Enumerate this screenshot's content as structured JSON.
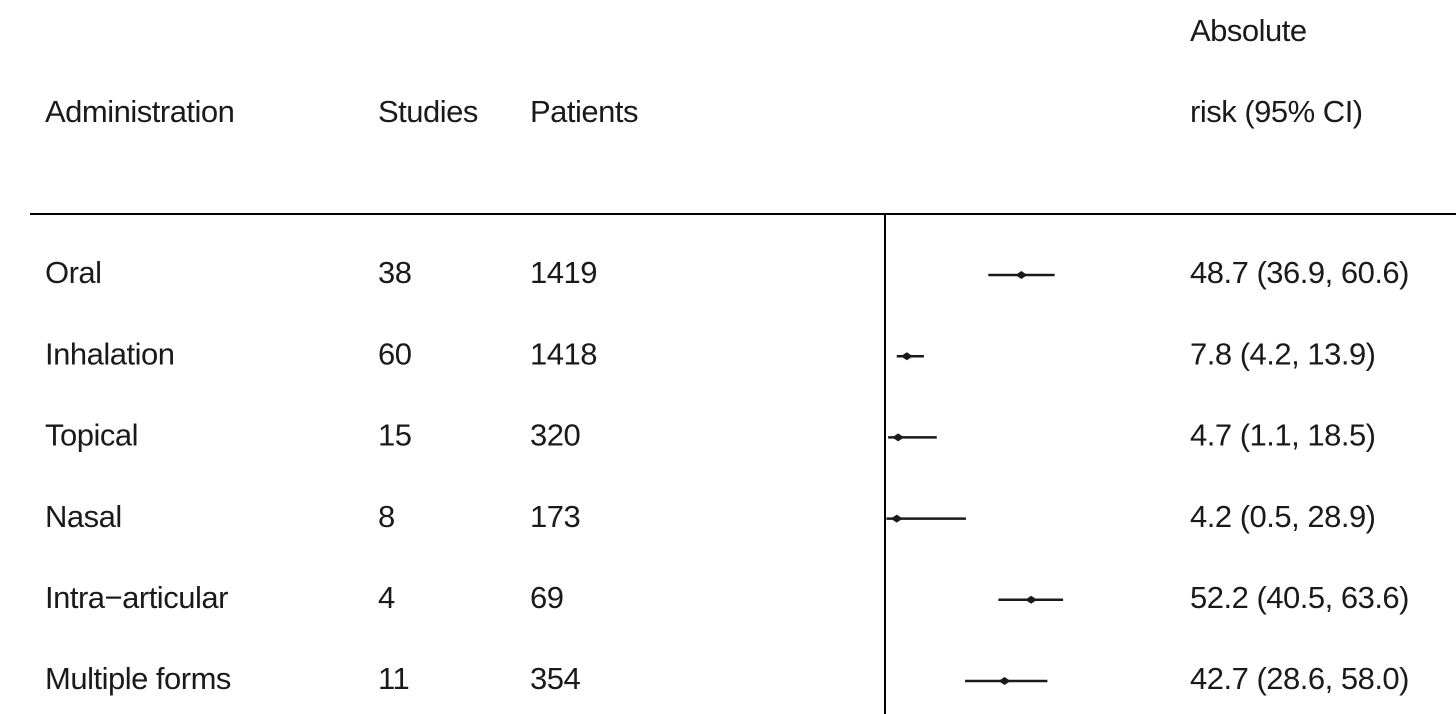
{
  "chart_data": {
    "type": "forest",
    "columns": [
      "Administration",
      "Studies",
      "Patients"
    ],
    "estimate_header": [
      "Absolute",
      "risk (95% CI)"
    ],
    "categories": [
      "Oral",
      "Inhalation",
      "Topical",
      "Nasal",
      "Intra−articular",
      "Multiple forms"
    ],
    "studies": [
      38,
      60,
      15,
      8,
      4,
      11
    ],
    "patients": [
      1419,
      1418,
      320,
      173,
      69,
      354
    ],
    "values": [
      48.7,
      7.8,
      4.7,
      4.2,
      52.2,
      42.7
    ],
    "lower": [
      36.9,
      4.2,
      1.1,
      0.5,
      40.5,
      28.6
    ],
    "upper": [
      60.6,
      13.9,
      18.5,
      28.9,
      63.6,
      58.0
    ],
    "value_labels": [
      "48.7 (36.9, 60.6)",
      "7.8 (4.2, 13.9)",
      "4.7 (1.1, 18.5)",
      "4.2 (0.5, 28.9)",
      "52.2 (40.5, 63.6)",
      "42.7 (28.6, 58.0)"
    ],
    "xlim": [
      0,
      100
    ],
    "color": "#1a1a1a"
  }
}
